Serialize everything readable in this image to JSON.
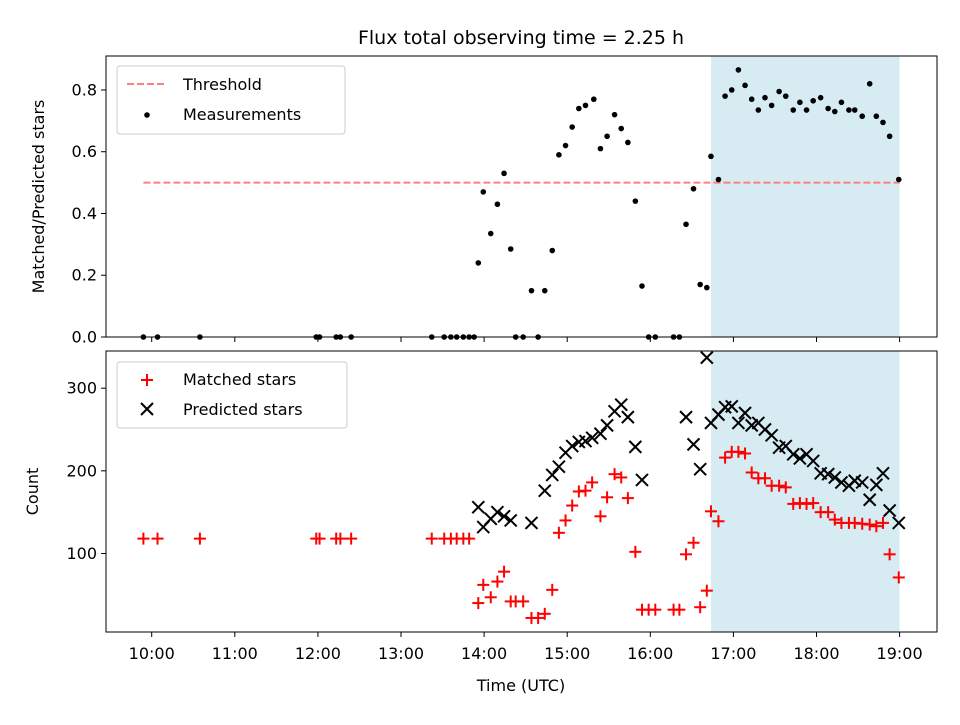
{
  "chart_data": {
    "title": "Flux total observing time = 2.25 h",
    "xlabel": "Time (UTC)",
    "x_ticks": [
      "10:00",
      "11:00",
      "12:00",
      "13:00",
      "14:00",
      "15:00",
      "16:00",
      "17:00",
      "18:00",
      "19:00"
    ],
    "x_tick_hours": [
      10,
      11,
      12,
      13,
      14,
      15,
      16,
      17,
      18,
      19
    ],
    "xlim_hours": [
      9.45,
      19.45
    ],
    "highlight_span_hours": [
      16.73,
      19.0
    ],
    "highlight_color": "#add8e6",
    "panels": [
      {
        "type": "scatter",
        "ylabel": "Matched/Predicted stars",
        "ylim": [
          0,
          0.91
        ],
        "y_ticks": [
          0.0,
          0.2,
          0.4,
          0.6,
          0.8
        ],
        "y_tick_labels": [
          "0.0",
          "0.2",
          "0.4",
          "0.6",
          "0.8"
        ],
        "legend_position": "upper left",
        "threshold": {
          "name": "Threshold",
          "y": 0.5,
          "x_range_hours": [
            9.9,
            19.0
          ],
          "color": "#ff7f7f"
        },
        "series": [
          {
            "name": "Measurements",
            "marker": "dot",
            "color": "#000000",
            "points": [
              [
                9.9,
                0
              ],
              [
                10.07,
                0
              ],
              [
                10.58,
                0
              ],
              [
                11.98,
                0
              ],
              [
                12.02,
                0
              ],
              [
                12.22,
                0
              ],
              [
                12.27,
                0
              ],
              [
                12.4,
                0
              ],
              [
                13.37,
                0
              ],
              [
                13.52,
                0
              ],
              [
                13.6,
                0
              ],
              [
                13.67,
                0
              ],
              [
                13.75,
                0
              ],
              [
                13.82,
                0
              ],
              [
                13.88,
                0
              ],
              [
                13.93,
                0.24
              ],
              [
                13.99,
                0.47
              ],
              [
                14.08,
                0.335
              ],
              [
                14.16,
                0.43
              ],
              [
                14.24,
                0.53
              ],
              [
                14.32,
                0.285
              ],
              [
                14.38,
                0
              ],
              [
                14.47,
                0
              ],
              [
                14.57,
                0.15
              ],
              [
                14.65,
                0
              ],
              [
                14.73,
                0.15
              ],
              [
                14.82,
                0.28
              ],
              [
                14.9,
                0.59
              ],
              [
                14.98,
                0.62
              ],
              [
                15.06,
                0.68
              ],
              [
                15.14,
                0.74
              ],
              [
                15.22,
                0.75
              ],
              [
                15.32,
                0.77
              ],
              [
                15.4,
                0.61
              ],
              [
                15.48,
                0.65
              ],
              [
                15.57,
                0.72
              ],
              [
                15.65,
                0.675
              ],
              [
                15.73,
                0.63
              ],
              [
                15.82,
                0.44
              ],
              [
                15.9,
                0.165
              ],
              [
                15.98,
                0
              ],
              [
                16.06,
                0
              ],
              [
                16.28,
                0
              ],
              [
                16.35,
                0
              ],
              [
                16.43,
                0.365
              ],
              [
                16.52,
                0.48
              ],
              [
                16.6,
                0.17
              ],
              [
                16.68,
                0.16
              ],
              [
                16.73,
                0.585
              ],
              [
                16.82,
                0.51
              ],
              [
                16.9,
                0.78
              ],
              [
                16.98,
                0.8
              ],
              [
                17.06,
                0.865
              ],
              [
                17.14,
                0.815
              ],
              [
                17.22,
                0.77
              ],
              [
                17.3,
                0.735
              ],
              [
                17.38,
                0.775
              ],
              [
                17.46,
                0.75
              ],
              [
                17.55,
                0.795
              ],
              [
                17.63,
                0.78
              ],
              [
                17.72,
                0.735
              ],
              [
                17.8,
                0.76
              ],
              [
                17.88,
                0.735
              ],
              [
                17.96,
                0.765
              ],
              [
                18.05,
                0.775
              ],
              [
                18.14,
                0.74
              ],
              [
                18.22,
                0.73
              ],
              [
                18.3,
                0.76
              ],
              [
                18.39,
                0.735
              ],
              [
                18.46,
                0.735
              ],
              [
                18.55,
                0.715
              ],
              [
                18.64,
                0.82
              ],
              [
                18.72,
                0.715
              ],
              [
                18.8,
                0.695
              ],
              [
                18.88,
                0.65
              ],
              [
                18.99,
                0.51
              ]
            ]
          }
        ]
      },
      {
        "type": "scatter",
        "ylabel": "Count",
        "ylim": [
          5,
          345
        ],
        "y_ticks": [
          100,
          200,
          300
        ],
        "y_tick_labels": [
          "100",
          "200",
          "300"
        ],
        "legend_position": "upper left",
        "series": [
          {
            "name": "Matched stars",
            "marker": "plus",
            "color": "#ff0000",
            "points": [
              [
                9.9,
                118
              ],
              [
                10.07,
                118
              ],
              [
                10.58,
                118
              ],
              [
                11.98,
                118
              ],
              [
                12.02,
                118
              ],
              [
                12.22,
                118
              ],
              [
                12.27,
                118
              ],
              [
                12.4,
                118
              ],
              [
                13.37,
                118
              ],
              [
                13.52,
                118
              ],
              [
                13.6,
                118
              ],
              [
                13.67,
                118
              ],
              [
                13.75,
                118
              ],
              [
                13.82,
                118
              ],
              [
                13.93,
                40
              ],
              [
                13.99,
                62
              ],
              [
                14.08,
                47
              ],
              [
                14.16,
                66
              ],
              [
                14.24,
                78
              ],
              [
                14.32,
                42
              ],
              [
                14.38,
                42
              ],
              [
                14.47,
                42
              ],
              [
                14.57,
                22
              ],
              [
                14.65,
                22
              ],
              [
                14.73,
                27
              ],
              [
                14.82,
                56
              ],
              [
                14.9,
                125
              ],
              [
                14.98,
                140
              ],
              [
                15.06,
                158
              ],
              [
                15.14,
                175
              ],
              [
                15.22,
                176
              ],
              [
                15.3,
                186
              ],
              [
                15.4,
                145
              ],
              [
                15.48,
                168
              ],
              [
                15.57,
                196
              ],
              [
                15.65,
                192
              ],
              [
                15.73,
                167
              ],
              [
                15.82,
                102
              ],
              [
                15.9,
                32
              ],
              [
                15.98,
                32
              ],
              [
                16.06,
                32
              ],
              [
                16.28,
                32
              ],
              [
                16.35,
                32
              ],
              [
                16.43,
                99
              ],
              [
                16.52,
                113
              ],
              [
                16.6,
                35
              ],
              [
                16.68,
                55
              ],
              [
                16.73,
                151
              ],
              [
                16.82,
                139
              ],
              [
                16.9,
                216
              ],
              [
                16.98,
                223
              ],
              [
                17.06,
                223
              ],
              [
                17.14,
                221
              ],
              [
                17.22,
                198
              ],
              [
                17.3,
                191
              ],
              [
                17.38,
                191
              ],
              [
                17.46,
                182
              ],
              [
                17.55,
                182
              ],
              [
                17.63,
                180
              ],
              [
                17.72,
                160
              ],
              [
                17.8,
                161
              ],
              [
                17.88,
                160
              ],
              [
                17.96,
                161
              ],
              [
                18.05,
                150
              ],
              [
                18.14,
                150
              ],
              [
                18.22,
                141
              ],
              [
                18.3,
                137
              ],
              [
                18.39,
                137
              ],
              [
                18.46,
                137
              ],
              [
                18.55,
                136
              ],
              [
                18.64,
                135
              ],
              [
                18.72,
                133
              ],
              [
                18.8,
                137
              ],
              [
                18.88,
                99
              ],
              [
                18.99,
                71
              ]
            ]
          },
          {
            "name": "Predicted stars",
            "marker": "x",
            "color": "#000000",
            "points": [
              [
                13.93,
                156
              ],
              [
                13.99,
                132
              ],
              [
                14.08,
                142
              ],
              [
                14.16,
                150
              ],
              [
                14.24,
                145
              ],
              [
                14.32,
                140
              ],
              [
                14.57,
                137
              ],
              [
                14.73,
                176
              ],
              [
                14.82,
                195
              ],
              [
                14.9,
                205
              ],
              [
                14.98,
                222
              ],
              [
                15.06,
                230
              ],
              [
                15.14,
                235
              ],
              [
                15.22,
                236
              ],
              [
                15.3,
                240
              ],
              [
                15.4,
                245
              ],
              [
                15.48,
                255
              ],
              [
                15.57,
                272
              ],
              [
                15.65,
                280
              ],
              [
                15.73,
                265
              ],
              [
                15.82,
                229
              ],
              [
                15.9,
                189
              ],
              [
                16.43,
                265
              ],
              [
                16.52,
                232
              ],
              [
                16.6,
                202
              ],
              [
                16.68,
                337
              ],
              [
                16.73,
                258
              ],
              [
                16.82,
                268
              ],
              [
                16.9,
                277
              ],
              [
                16.98,
                278
              ],
              [
                17.06,
                258
              ],
              [
                17.14,
                270
              ],
              [
                17.22,
                255
              ],
              [
                17.3,
                258
              ],
              [
                17.38,
                250
              ],
              [
                17.46,
                243
              ],
              [
                17.55,
                228
              ],
              [
                17.63,
                230
              ],
              [
                17.72,
                220
              ],
              [
                17.8,
                215
              ],
              [
                17.88,
                220
              ],
              [
                17.96,
                212
              ],
              [
                18.05,
                197
              ],
              [
                18.14,
                196
              ],
              [
                18.22,
                192
              ],
              [
                18.3,
                186
              ],
              [
                18.39,
                182
              ],
              [
                18.46,
                188
              ],
              [
                18.55,
                186
              ],
              [
                18.64,
                165
              ],
              [
                18.72,
                183
              ],
              [
                18.8,
                197
              ],
              [
                18.88,
                152
              ],
              [
                18.99,
                137
              ]
            ]
          }
        ]
      }
    ]
  }
}
